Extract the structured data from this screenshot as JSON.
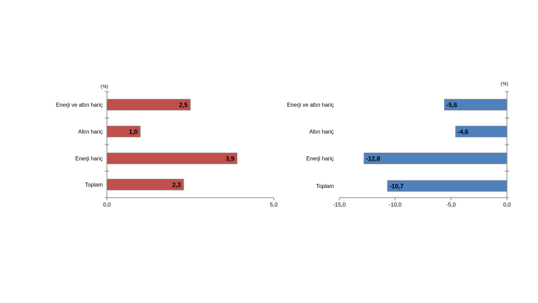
{
  "chart_data": [
    {
      "type": "bar",
      "orientation": "horizontal",
      "unit_label": "(%)",
      "categories": [
        "Enerji ve altın hariç",
        "Altın hariç",
        "Enerji hariç",
        "Toplam"
      ],
      "values": [
        2.5,
        1.0,
        3.9,
        2.3
      ],
      "value_labels": [
        "2,5",
        "1,0",
        "3,9",
        "2,3"
      ],
      "xlim": [
        0,
        5
      ],
      "ticks": [
        0,
        5
      ],
      "tick_labels": [
        "0,0",
        "5,0"
      ],
      "grid": false,
      "color": "#c0504d"
    },
    {
      "type": "bar",
      "orientation": "horizontal",
      "unit_label": "(%)",
      "categories": [
        "Enerji ve altın hariç",
        "Altın hariç",
        "Enerji hariç",
        "Toplam"
      ],
      "values": [
        -5.6,
        -4.6,
        -12.8,
        -10.7
      ],
      "value_labels": [
        "-5,6",
        "-4,6",
        "-12,8",
        "-10,7"
      ],
      "xlim": [
        -15,
        0
      ],
      "ticks": [
        -15,
        -10,
        -5,
        0
      ],
      "tick_labels": [
        "-15,0",
        "-10,0",
        "-5,0",
        "0,0"
      ],
      "grid": false,
      "color": "#4f81bd"
    }
  ]
}
